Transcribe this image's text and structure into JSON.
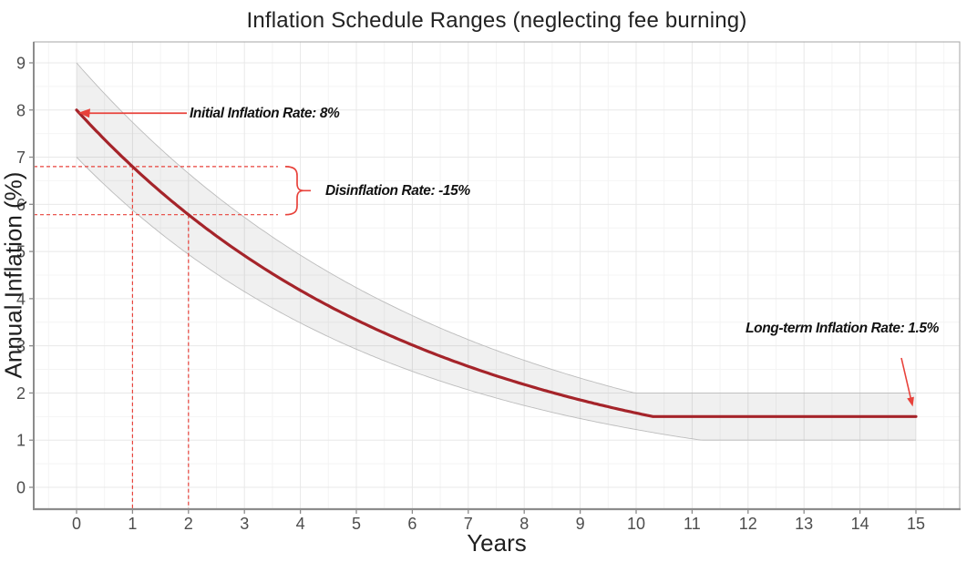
{
  "chart_data": {
    "type": "line",
    "title": "Inflation Schedule Ranges (neglecting fee burning)",
    "xlabel": "Years",
    "ylabel": "Annual Inflation (%)",
    "x_ticks": [
      0,
      1,
      2,
      3,
      4,
      5,
      6,
      7,
      8,
      9,
      10,
      11,
      12,
      13,
      14,
      15
    ],
    "y_ticks": [
      0,
      1,
      2,
      3,
      4,
      5,
      6,
      7,
      8,
      9
    ],
    "xlim": [
      -0.77,
      15.78
    ],
    "ylim": [
      -0.46,
      9.44
    ],
    "grid": "major-and-minor",
    "legend": "none",
    "x_years": [
      0,
      1,
      2,
      3,
      4,
      5,
      6,
      7,
      8,
      9,
      10,
      11,
      12,
      13,
      14,
      15
    ],
    "series": [
      {
        "name": "central-inflation-schedule",
        "model": "max(long_term, initial * (1 + disinflation_rate)^t)",
        "initial_pct": 8,
        "disinflation_rate": -0.15,
        "long_term_pct": 1.5,
        "values": [
          8.0,
          6.8,
          5.78,
          4.91,
          4.18,
          3.55,
          3.02,
          2.57,
          2.18,
          1.85,
          1.58,
          1.5,
          1.5,
          1.5,
          1.5,
          1.5
        ]
      }
    ],
    "band": {
      "name": "schedule-range-ribbon",
      "upper": {
        "initial_pct": 9,
        "decay_rate": -0.14,
        "floor_pct": 2.0,
        "values": [
          9.0,
          7.74,
          6.66,
          5.73,
          4.92,
          4.23,
          3.64,
          3.13,
          2.69,
          2.32,
          2.0,
          2.0,
          2.0,
          2.0,
          2.0,
          2.0
        ]
      },
      "lower": {
        "initial_pct": 7,
        "decay_rate": -0.16,
        "floor_pct": 1.0,
        "values": [
          7.0,
          5.88,
          4.94,
          4.15,
          3.48,
          2.93,
          2.46,
          2.07,
          1.74,
          1.46,
          1.22,
          1.03,
          1.0,
          1.0,
          1.0,
          1.0
        ]
      }
    },
    "annotations": [
      {
        "id": "initial",
        "text": "Initial Inflation Rate: 8%",
        "points_to": {
          "x": 0,
          "y": 8
        }
      },
      {
        "id": "disinflation",
        "text": "Disinflation Rate: -15%",
        "guide_upper_pct": 6.8,
        "guide_lower_pct": 5.78,
        "guide_year_upper": 1,
        "guide_year_lower": 2
      },
      {
        "id": "long_term",
        "text": "Long-term Inflation Rate: 1.5%",
        "points_to": {
          "x": 15,
          "y": 1.5
        }
      }
    ],
    "colors": {
      "curve": "#a5242a",
      "annotation_red": "#e8423b",
      "band_fill": "#000000",
      "band_fill_opacity": 0.057,
      "band_edge": "#bcbcbc",
      "grid_major": "#e8e8e8",
      "grid_minor": "#f4f4f4",
      "axis_line": "#8c8c8c",
      "panel_border": "#a6a6a6",
      "tick_label": "#4d4d4d",
      "title_text": "#222222"
    }
  }
}
